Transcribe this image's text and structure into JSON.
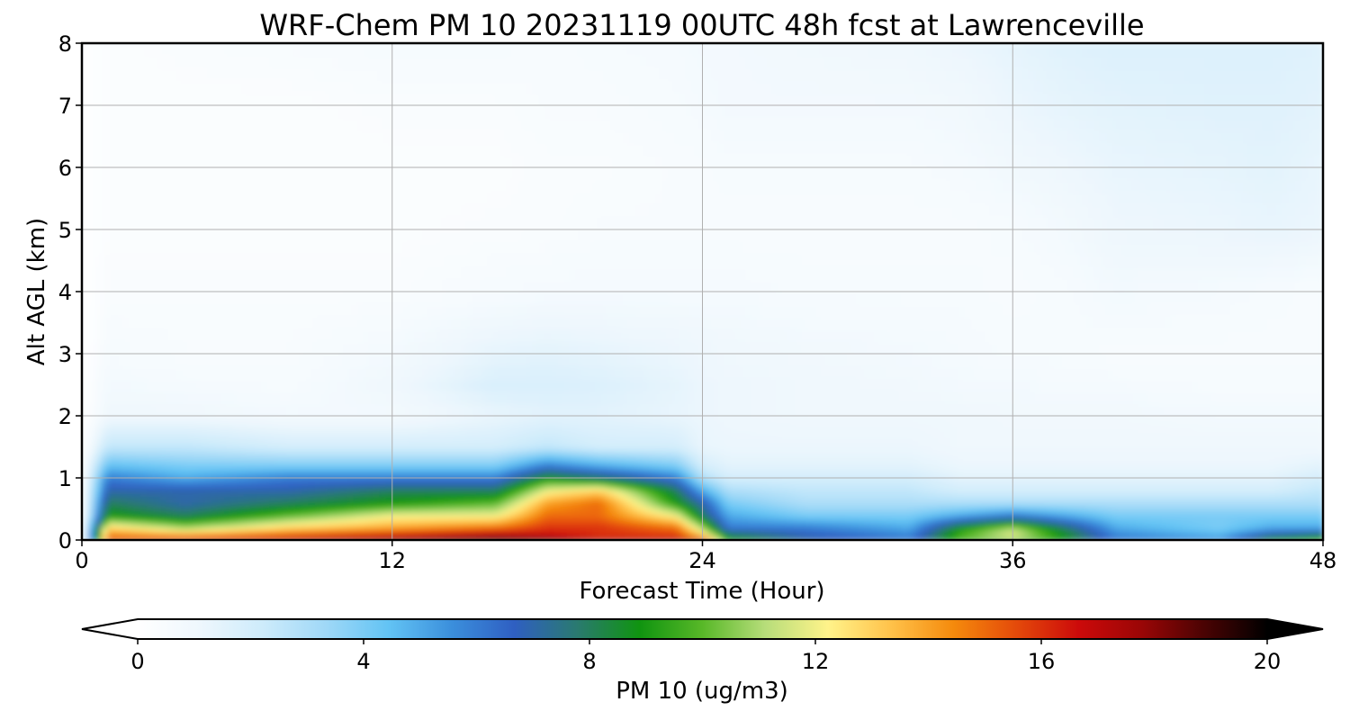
{
  "chart_data": {
    "type": "heatmap",
    "title": "WRF-Chem PM 10  20231119 00UTC 48h fcst at Lawrenceville",
    "xlabel": "Forecast Time (Hour)",
    "ylabel": "Alt AGL (km)",
    "xlim": [
      0,
      48
    ],
    "ylim": [
      0,
      8
    ],
    "x_ticks": [
      0,
      12,
      24,
      36,
      48
    ],
    "y_ticks": [
      0,
      1,
      2,
      3,
      4,
      5,
      6,
      7,
      8
    ],
    "grid": true,
    "colorbar": {
      "label": "PM 10  (ug/m3)",
      "min": 0,
      "max": 20,
      "ticks": [
        0,
        4,
        8,
        12,
        16,
        20
      ],
      "extend": "both",
      "colors": [
        "#ffffff",
        "#eef7fd",
        "#cdebfb",
        "#9fd8f7",
        "#62c3f4",
        "#3b8fdc",
        "#2f5fc2",
        "#2a7a70",
        "#109410",
        "#58b828",
        "#b7dd7a",
        "#fff38a",
        "#ffc24a",
        "#f58a0c",
        "#e44a0a",
        "#cc0a0a",
        "#9a0606",
        "#4a0303",
        "#000000"
      ]
    },
    "field": {
      "x": [
        0,
        1,
        4,
        8,
        12,
        16,
        18,
        20,
        23,
        24,
        25,
        28,
        32,
        34,
        36,
        38,
        40,
        44,
        46,
        48
      ],
      "levels_km": [
        0,
        0.05,
        0.2,
        0.4,
        0.6,
        0.8,
        1.0,
        1.2,
        1.5,
        2.0,
        2.5,
        3.0,
        4.0,
        5.0,
        6.0,
        7.0,
        8.0
      ],
      "values": [
        [
          0,
          16,
          17,
          18,
          19,
          20,
          20,
          18,
          18,
          19,
          8,
          7,
          6,
          9,
          9,
          8,
          6,
          6,
          9,
          10
        ],
        [
          0,
          15,
          15,
          16,
          17,
          18,
          17,
          16,
          16,
          14,
          9,
          7,
          6,
          10,
          12,
          9,
          6,
          5,
          8,
          9
        ],
        [
          0,
          13,
          11,
          13,
          14,
          15,
          16,
          16,
          15,
          11,
          6,
          6,
          5,
          9,
          11,
          8,
          5,
          4,
          5,
          5
        ],
        [
          0,
          9,
          8,
          10,
          12,
          12,
          15,
          15,
          12,
          8,
          5,
          4,
          4,
          5,
          6,
          5,
          4,
          4,
          4,
          4
        ],
        [
          0,
          8,
          7,
          8,
          9,
          10,
          14,
          15,
          9,
          7,
          4,
          3,
          3,
          3,
          3,
          3,
          3,
          3,
          3,
          3
        ],
        [
          0,
          7,
          7,
          7,
          8,
          8,
          12,
          13,
          8,
          5,
          3,
          2.5,
          2.5,
          2,
          2,
          2,
          2,
          2,
          2,
          2.5
        ],
        [
          0,
          6,
          5,
          6,
          6,
          6,
          9,
          8,
          6,
          3,
          2,
          2,
          2,
          1.5,
          1.5,
          1.5,
          1.5,
          1.5,
          1.5,
          2
        ],
        [
          0,
          4.5,
          4,
          4,
          4,
          4,
          6,
          5,
          4,
          2,
          1.5,
          1.5,
          1.5,
          1.2,
          1.2,
          1.2,
          1.2,
          1.2,
          1.2,
          1.5
        ],
        [
          0,
          2.5,
          2.5,
          2,
          2,
          2,
          2.5,
          2,
          2,
          1.3,
          1.2,
          1.2,
          1.2,
          1,
          1,
          1,
          1,
          1,
          1,
          1
        ],
        [
          0,
          1,
          1,
          0.8,
          0.8,
          1.3,
          1.5,
          1.5,
          1.3,
          1.2,
          1.1,
          1,
          1,
          1,
          0.9,
          0.9,
          0.9,
          0.8,
          0.8,
          0.8
        ],
        [
          0,
          0.8,
          0.7,
          0.6,
          1,
          1.8,
          1.8,
          1.7,
          1.4,
          1.2,
          1.1,
          1,
          0.9,
          0.8,
          0.8,
          0.7,
          0.7,
          0.6,
          0.6,
          0.6
        ],
        [
          0,
          0.6,
          0.5,
          0.5,
          0.8,
          1.4,
          1.5,
          1.4,
          1.2,
          1.1,
          1,
          0.9,
          0.8,
          0.7,
          0.6,
          0.6,
          0.5,
          0.5,
          0.5,
          0.5
        ],
        [
          0,
          0.4,
          0.4,
          0.4,
          0.4,
          0.6,
          0.7,
          0.7,
          0.7,
          0.7,
          0.7,
          0.6,
          0.6,
          0.6,
          0.5,
          0.6,
          0.8,
          0.7,
          0.6,
          0.5
        ],
        [
          0,
          0.3,
          0.3,
          0.3,
          0.3,
          0.4,
          0.4,
          0.5,
          0.5,
          0.5,
          0.5,
          0.5,
          0.5,
          0.5,
          0.6,
          0.8,
          1.1,
          1.2,
          1.3,
          1.2
        ],
        [
          0,
          0.3,
          0.3,
          0.3,
          0.3,
          0.3,
          0.4,
          0.4,
          0.5,
          0.5,
          0.6,
          0.6,
          0.6,
          0.7,
          0.9,
          1.1,
          1.3,
          1.4,
          1.5,
          1.3
        ],
        [
          0,
          0.3,
          0.3,
          0.3,
          0.4,
          0.4,
          0.5,
          0.5,
          0.6,
          0.7,
          0.8,
          0.8,
          0.8,
          0.9,
          1.2,
          1.4,
          1.5,
          1.6,
          1.6,
          1.5
        ],
        [
          0,
          0.3,
          0.4,
          0.5,
          0.6,
          0.6,
          0.5,
          0.6,
          0.7,
          0.8,
          0.8,
          0.9,
          1.0,
          1.2,
          1.4,
          1.6,
          1.7,
          1.7,
          1.7,
          1.6
        ]
      ]
    }
  }
}
